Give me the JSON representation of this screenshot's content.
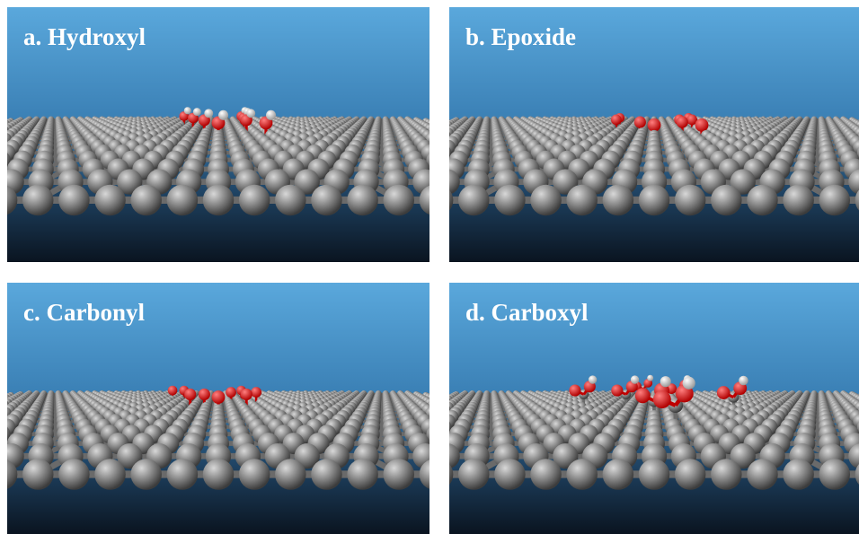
{
  "panels": [
    {
      "label": "a. Hydroxyl"
    },
    {
      "label": "b. Epoxide"
    },
    {
      "label": "c. Carbonyl"
    },
    {
      "label": "d. Carboxyl"
    }
  ]
}
